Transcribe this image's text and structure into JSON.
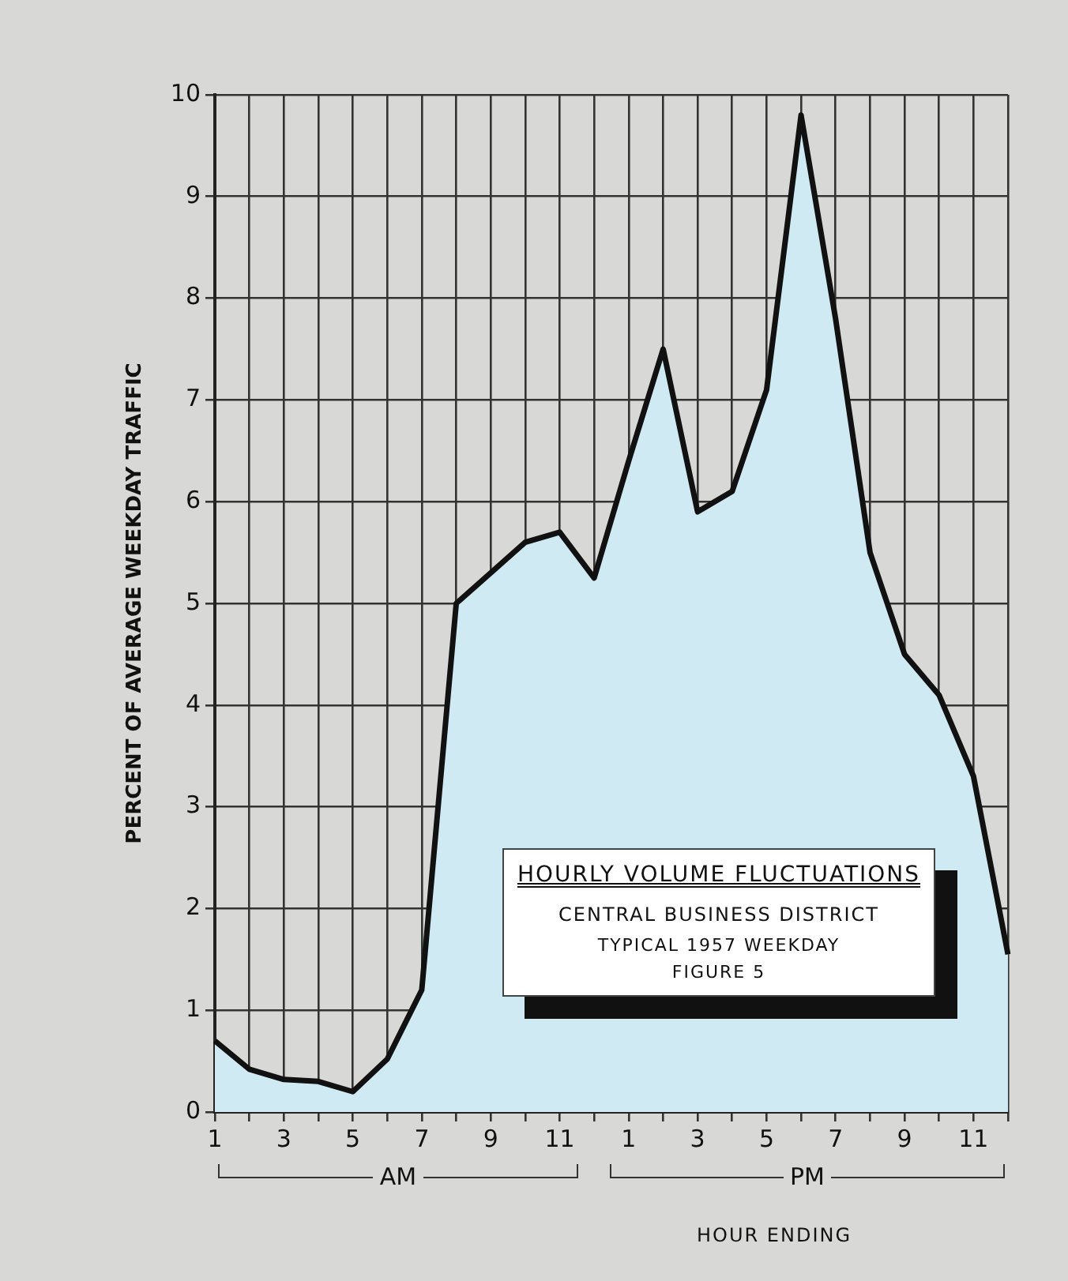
{
  "chart_data": {
    "type": "area",
    "title": "HOURLY VOLUME FLUCTUATIONS",
    "subtitle": "CENTRAL BUSINESS DISTRICT",
    "xlabel": "HOUR ENDING",
    "ylabel": "PERCENT OF AVERAGE WEEKDAY TRAFFIC",
    "annotations": [
      "TYPICAL 1957 WEEKDAY",
      "FIGURE 5",
      "AM",
      "PM"
    ],
    "categories": [
      "1",
      null,
      "3",
      null,
      "5",
      null,
      "7",
      null,
      "9",
      null,
      "11",
      null,
      "1",
      null,
      "3",
      null,
      "5",
      null,
      "7",
      null,
      "9",
      null,
      "11",
      null
    ],
    "series": [
      {
        "color": "#111111",
        "values": [
          0.7,
          0.42,
          0.32,
          0.3,
          0.2,
          0.52,
          1.2,
          5.0,
          5.3,
          5.6,
          5.7,
          5.25,
          6.4,
          7.5,
          5.9,
          6.1,
          7.1,
          9.8,
          7.8,
          5.5,
          4.5,
          4.1,
          3.3,
          1.55
        ]
      }
    ],
    "ylim": [
      0,
      10
    ],
    "yticks": [
      0,
      1,
      2,
      3,
      4,
      5,
      6,
      7,
      8,
      9,
      10
    ],
    "grid": true,
    "legend": false,
    "marker": "none",
    "line_style": "solid"
  }
}
